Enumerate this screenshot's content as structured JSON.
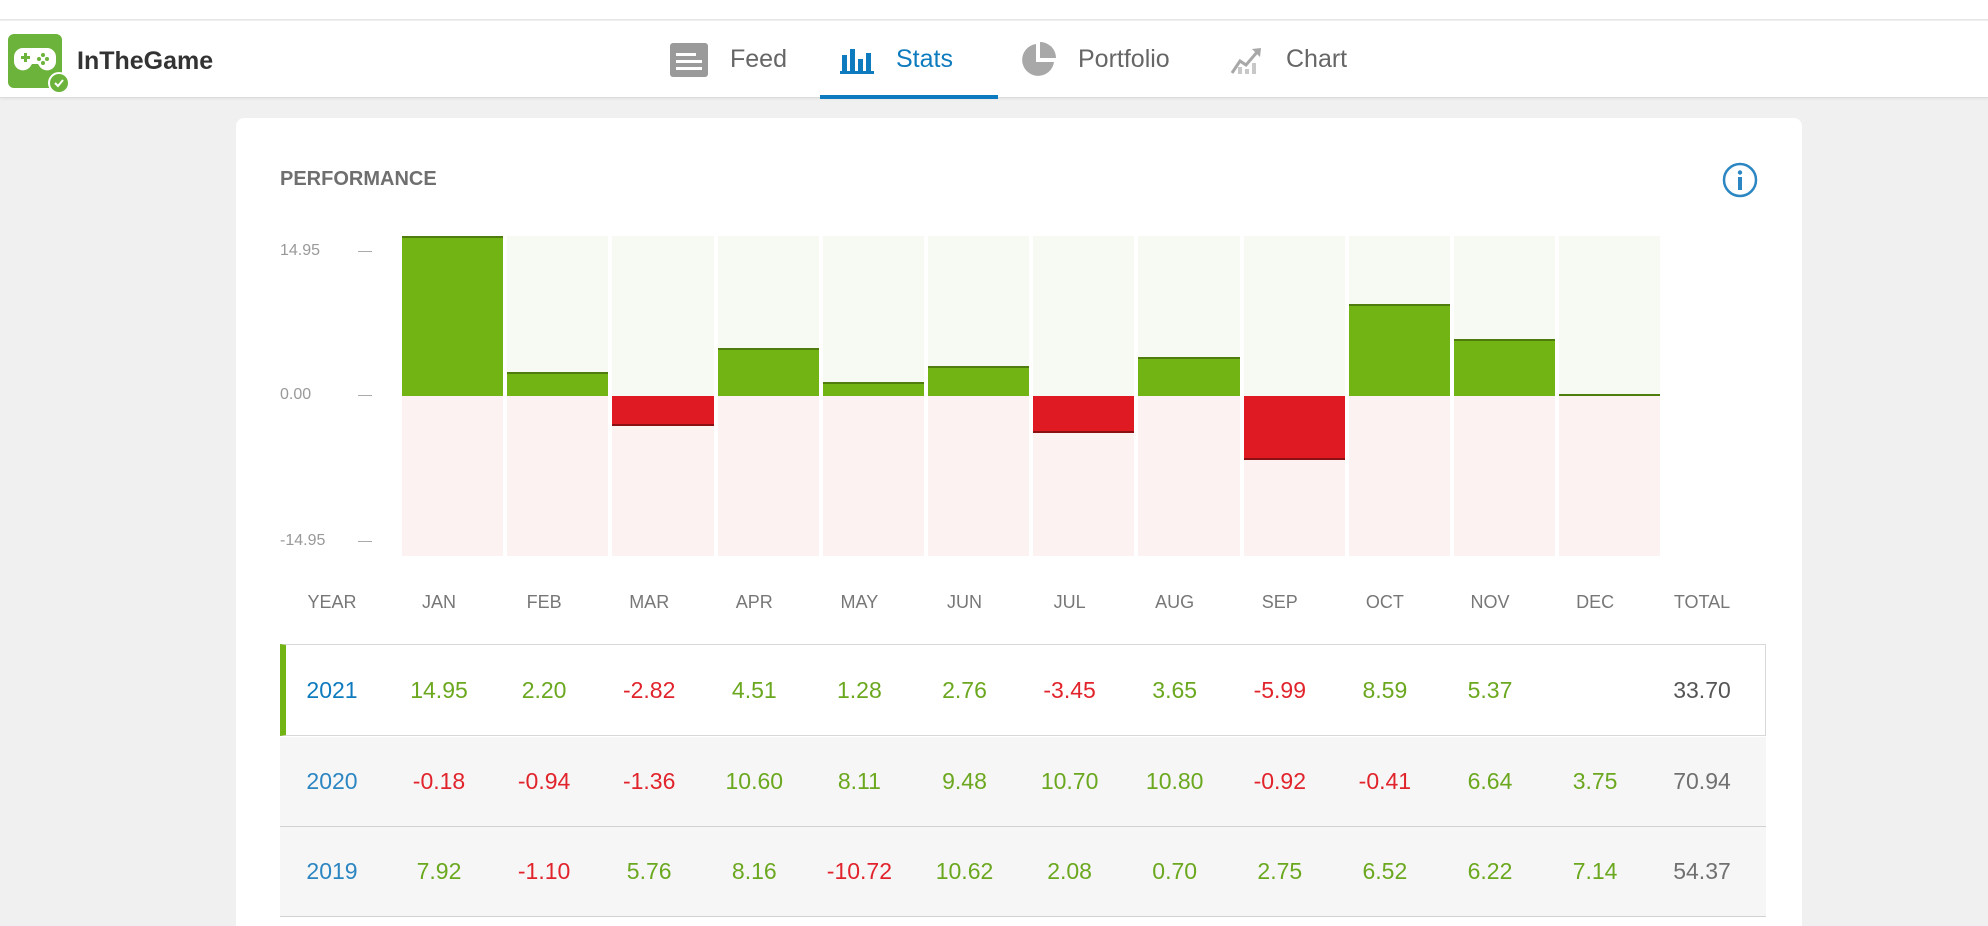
{
  "app": {
    "name": "InTheGame"
  },
  "tabs": [
    {
      "label": "Feed",
      "icon": "feed-icon",
      "active": false
    },
    {
      "label": "Stats",
      "icon": "bar-chart-icon",
      "active": true
    },
    {
      "label": "Portfolio",
      "icon": "pie-chart-icon",
      "active": false
    },
    {
      "label": "Chart",
      "icon": "trend-chart-icon",
      "active": false
    }
  ],
  "colors": {
    "accent": "#0e7bbf",
    "positive": "#72b414",
    "negative": "#e01a22",
    "brand": "#6bb33a"
  },
  "performance": {
    "title": "PERFORMANCE",
    "y_ticks": [
      "14.95",
      "0.00",
      "-14.95"
    ],
    "columns": [
      "YEAR",
      "JAN",
      "FEB",
      "MAR",
      "APR",
      "MAY",
      "JUN",
      "JUL",
      "AUG",
      "SEP",
      "OCT",
      "NOV",
      "DEC",
      "TOTAL"
    ],
    "rows": [
      {
        "year": "2021",
        "months": [
          "14.95",
          "2.20",
          "-2.82",
          "4.51",
          "1.28",
          "2.76",
          "-3.45",
          "3.65",
          "-5.99",
          "8.59",
          "5.37",
          ""
        ],
        "total": "33.70"
      },
      {
        "year": "2020",
        "months": [
          "-0.18",
          "-0.94",
          "-1.36",
          "10.60",
          "8.11",
          "9.48",
          "10.70",
          "10.80",
          "-0.92",
          "-0.41",
          "6.64",
          "3.75"
        ],
        "total": "70.94"
      },
      {
        "year": "2019",
        "months": [
          "7.92",
          "-1.10",
          "5.76",
          "8.16",
          "-10.72",
          "10.62",
          "2.08",
          "0.70",
          "2.75",
          "6.52",
          "6.22",
          "7.14"
        ],
        "total": "54.37"
      }
    ]
  },
  "chart_data": {
    "type": "bar",
    "categories": [
      "JAN",
      "FEB",
      "MAR",
      "APR",
      "MAY",
      "JUN",
      "JUL",
      "AUG",
      "SEP",
      "OCT",
      "NOV",
      "DEC"
    ],
    "values": [
      14.95,
      2.2,
      -2.82,
      4.51,
      1.28,
      2.76,
      -3.45,
      3.65,
      -5.99,
      8.59,
      5.37,
      0.1
    ],
    "ylim": [
      -14.95,
      14.95
    ],
    "yticks": [
      14.95,
      0.0,
      -14.95
    ]
  }
}
